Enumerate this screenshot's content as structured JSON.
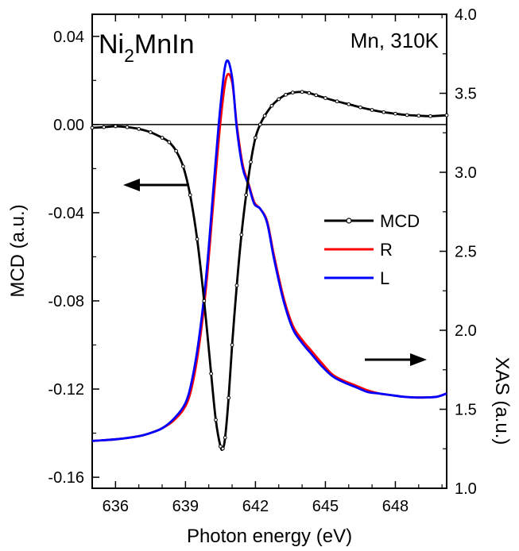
{
  "chart_data": {
    "type": "line",
    "title": "",
    "xlabel": "Photon energy (eV)",
    "ylabel_left": "MCD (a.u.)",
    "ylabel_right": "XAS (a.u.)",
    "xlim": [
      635,
      650.2
    ],
    "ylim_left": [
      -0.165,
      0.05
    ],
    "ylim_right": [
      1.0,
      4.0
    ],
    "x_ticks": [
      "636",
      "639",
      "642",
      "645",
      "648"
    ],
    "x_tick_values": [
      636,
      639,
      642,
      645,
      648
    ],
    "y_left_ticks": [
      "0.04",
      "0.00",
      "-0.04",
      "-0.08",
      "-0.12",
      "-0.16"
    ],
    "y_left_tick_values": [
      0.04,
      0.0,
      -0.04,
      -0.08,
      -0.12,
      -0.16
    ],
    "y_right_ticks": [
      "1.0",
      "1.5",
      "2.0",
      "2.5",
      "3.0",
      "3.5",
      "4.0"
    ],
    "y_right_tick_values": [
      1.0,
      1.5,
      2.0,
      2.5,
      3.0,
      3.5,
      4.0
    ],
    "annotations": {
      "sample_base": "Ni",
      "sample_sub": "2",
      "sample_rest": "MnIn",
      "edge_temp": "Mn, 310K"
    },
    "zero_line_value": 0.0,
    "legend_position": "center-right",
    "series": [
      {
        "name": "MCD",
        "axis": "left",
        "color": "#000000",
        "markers": true,
        "x": [
          635.0,
          635.5,
          636.0,
          636.5,
          637.0,
          637.5,
          638.0,
          638.3,
          638.6,
          638.9,
          639.2,
          639.5,
          639.8,
          640.1,
          640.3,
          640.5,
          640.6,
          640.7,
          640.85,
          641.0,
          641.2,
          641.4,
          641.6,
          641.8,
          642.0,
          642.2,
          642.4,
          642.7,
          643.0,
          643.3,
          643.6,
          644.0,
          644.3,
          644.6,
          645.0,
          645.5,
          646.0,
          646.5,
          647.0,
          647.5,
          648.0,
          648.5,
          649.0,
          649.5,
          650.2
        ],
        "y": [
          -0.0015,
          -0.0012,
          -0.0008,
          -0.0012,
          -0.002,
          -0.0035,
          -0.006,
          -0.008,
          -0.012,
          -0.019,
          -0.032,
          -0.052,
          -0.08,
          -0.113,
          -0.134,
          -0.146,
          -0.147,
          -0.142,
          -0.124,
          -0.1,
          -0.073,
          -0.05,
          -0.032,
          -0.017,
          -0.006,
          0.0,
          0.004,
          0.0085,
          0.0115,
          0.0135,
          0.0145,
          0.0148,
          0.0143,
          0.0133,
          0.012,
          0.0105,
          0.0092,
          0.0078,
          0.0066,
          0.0056,
          0.0049,
          0.0043,
          0.004,
          0.0038,
          0.0042
        ]
      },
      {
        "name": "R",
        "axis": "right",
        "color": "#ff0000",
        "markers": false,
        "x": [
          635.0,
          636.0,
          637.0,
          637.5,
          638.0,
          638.5,
          639.0,
          639.3,
          639.6,
          639.9,
          640.2,
          640.5,
          640.75,
          641.0,
          641.2,
          641.45,
          641.7,
          641.95,
          642.2,
          642.5,
          642.8,
          643.2,
          643.6,
          644.0,
          644.4,
          644.8,
          645.3,
          645.8,
          646.3,
          646.8,
          647.3,
          647.8,
          648.3,
          648.8,
          649.3,
          649.8,
          650.2
        ],
        "y": [
          1.3,
          1.31,
          1.33,
          1.35,
          1.38,
          1.43,
          1.52,
          1.66,
          1.92,
          2.3,
          2.82,
          3.32,
          3.6,
          3.57,
          3.3,
          3.05,
          2.93,
          2.81,
          2.77,
          2.69,
          2.47,
          2.21,
          2.03,
          1.94,
          1.87,
          1.8,
          1.72,
          1.68,
          1.65,
          1.62,
          1.6,
          1.59,
          1.58,
          1.575,
          1.575,
          1.58,
          1.6
        ]
      },
      {
        "name": "L",
        "axis": "right",
        "color": "#0000ff",
        "markers": false,
        "x": [
          635.0,
          636.0,
          637.0,
          637.5,
          638.0,
          638.5,
          639.0,
          639.3,
          639.6,
          639.9,
          640.2,
          640.5,
          640.75,
          641.0,
          641.2,
          641.45,
          641.7,
          641.95,
          642.2,
          642.5,
          642.8,
          643.2,
          643.6,
          644.0,
          644.4,
          644.8,
          645.3,
          645.8,
          646.3,
          646.8,
          647.3,
          647.8,
          648.3,
          648.8,
          649.3,
          649.8,
          650.2
        ],
        "y": [
          1.3,
          1.31,
          1.33,
          1.35,
          1.38,
          1.44,
          1.54,
          1.7,
          1.97,
          2.36,
          2.9,
          3.42,
          3.7,
          3.6,
          3.28,
          3.03,
          2.92,
          2.8,
          2.77,
          2.68,
          2.45,
          2.19,
          2.01,
          1.92,
          1.85,
          1.78,
          1.71,
          1.67,
          1.64,
          1.61,
          1.6,
          1.59,
          1.58,
          1.575,
          1.575,
          1.58,
          1.6
        ]
      }
    ]
  }
}
